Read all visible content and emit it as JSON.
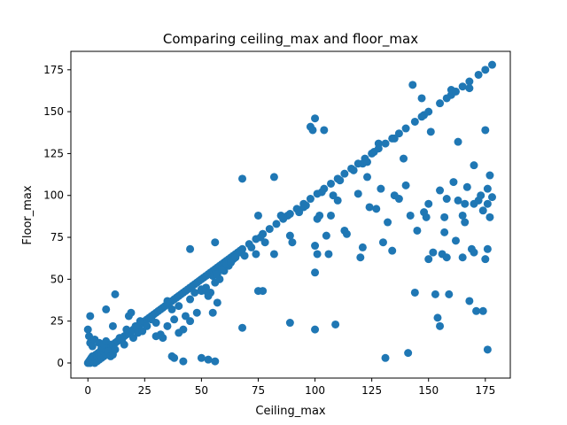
{
  "chart_data": {
    "type": "scatter",
    "title": "Comparing ceiling_max and floor_max",
    "xlabel": "Ceiling_max",
    "ylabel": "Floor_max",
    "xlim": [
      -7.5,
      186
    ],
    "ylim": [
      -9,
      186
    ],
    "xticks": [
      0,
      25,
      50,
      75,
      100,
      125,
      150,
      175
    ],
    "yticks": [
      0,
      25,
      50,
      75,
      100,
      125,
      150,
      175
    ],
    "grid": false,
    "marker_color": "#1f77b4",
    "points": [
      [
        0,
        0
      ],
      [
        0.5,
        1
      ],
      [
        1,
        0
      ],
      [
        1,
        2
      ],
      [
        1.5,
        3
      ],
      [
        2,
        1
      ],
      [
        2,
        4
      ],
      [
        2.5,
        2
      ],
      [
        3,
        0
      ],
      [
        3,
        3
      ],
      [
        3.5,
        5
      ],
      [
        4,
        1
      ],
      [
        4,
        4
      ],
      [
        4.5,
        6
      ],
      [
        5,
        2
      ],
      [
        5,
        5
      ],
      [
        5.5,
        7
      ],
      [
        6,
        3
      ],
      [
        6,
        6
      ],
      [
        6.5,
        8
      ],
      [
        7,
        4
      ],
      [
        7,
        7
      ],
      [
        7.5,
        9
      ],
      [
        8,
        5
      ],
      [
        8,
        8
      ],
      [
        8.5,
        10
      ],
      [
        9,
        6
      ],
      [
        9,
        9
      ],
      [
        10,
        10
      ],
      [
        10,
        11
      ],
      [
        11,
        11
      ],
      [
        12,
        12
      ],
      [
        13,
        13
      ],
      [
        14,
        14
      ],
      [
        15,
        15
      ],
      [
        16,
        16
      ],
      [
        17,
        17
      ],
      [
        18,
        18
      ],
      [
        19,
        19
      ],
      [
        20,
        20
      ],
      [
        21,
        21
      ],
      [
        22,
        22
      ],
      [
        23,
        23
      ],
      [
        24,
        24
      ],
      [
        25,
        25
      ],
      [
        26,
        26
      ],
      [
        27,
        27
      ],
      [
        28,
        28
      ],
      [
        29,
        29
      ],
      [
        30,
        30
      ],
      [
        31,
        31
      ],
      [
        32,
        32
      ],
      [
        33,
        33
      ],
      [
        34,
        34
      ],
      [
        35,
        35
      ],
      [
        36,
        36
      ],
      [
        37,
        37
      ],
      [
        38,
        38
      ],
      [
        39,
        39
      ],
      [
        40,
        40
      ],
      [
        41,
        41
      ],
      [
        42,
        42
      ],
      [
        43,
        43
      ],
      [
        44,
        44
      ],
      [
        45,
        45
      ],
      [
        46,
        46
      ],
      [
        47,
        47
      ],
      [
        48,
        48
      ],
      [
        49,
        49
      ],
      [
        50,
        50
      ],
      [
        51,
        51
      ],
      [
        52,
        52
      ],
      [
        53,
        53
      ],
      [
        54,
        54
      ],
      [
        55,
        55
      ],
      [
        56,
        56
      ],
      [
        57,
        57
      ],
      [
        58,
        58
      ],
      [
        59,
        59
      ],
      [
        60,
        60
      ],
      [
        61,
        61
      ],
      [
        62,
        62
      ],
      [
        63,
        63
      ],
      [
        64,
        64
      ],
      [
        65,
        65
      ],
      [
        66,
        66
      ],
      [
        67,
        67
      ],
      [
        68,
        68
      ],
      [
        0,
        20
      ],
      [
        0.5,
        16
      ],
      [
        1,
        28
      ],
      [
        1,
        12
      ],
      [
        2,
        10
      ],
      [
        3,
        14
      ],
      [
        5,
        12
      ],
      [
        6,
        9
      ],
      [
        7,
        11
      ],
      [
        8,
        13
      ],
      [
        9,
        7
      ],
      [
        10,
        4
      ],
      [
        11,
        5
      ],
      [
        12,
        8
      ],
      [
        12,
        41
      ],
      [
        15,
        14
      ],
      [
        16,
        11
      ],
      [
        17,
        20
      ],
      [
        18,
        28
      ],
      [
        19,
        30
      ],
      [
        20,
        15
      ],
      [
        21,
        22
      ],
      [
        22,
        18
      ],
      [
        23,
        25
      ],
      [
        24,
        19
      ],
      [
        26,
        22
      ],
      [
        28,
        26
      ],
      [
        30,
        24
      ],
      [
        32,
        17
      ],
      [
        35,
        22
      ],
      [
        38,
        26
      ],
      [
        40,
        18
      ],
      [
        42,
        20
      ],
      [
        45,
        25
      ],
      [
        48,
        30
      ],
      [
        50,
        43
      ],
      [
        52,
        45
      ],
      [
        54,
        42
      ],
      [
        56,
        48
      ],
      [
        58,
        50
      ],
      [
        60,
        55
      ],
      [
        62,
        58
      ],
      [
        64,
        62
      ],
      [
        8,
        32
      ],
      [
        11,
        22
      ],
      [
        14,
        15
      ],
      [
        30,
        16
      ],
      [
        33,
        15
      ],
      [
        37,
        4
      ],
      [
        38,
        3
      ],
      [
        42,
        1
      ],
      [
        45,
        68
      ],
      [
        50,
        3
      ],
      [
        53,
        2
      ],
      [
        56,
        1
      ],
      [
        55,
        30
      ],
      [
        56,
        72
      ],
      [
        57,
        36
      ],
      [
        68,
        21
      ],
      [
        68,
        110
      ],
      [
        74,
        65
      ],
      [
        75,
        88
      ],
      [
        75,
        43
      ],
      [
        77,
        43
      ],
      [
        76,
        75
      ],
      [
        77,
        77
      ],
      [
        78,
        72
      ],
      [
        82,
        111
      ],
      [
        82,
        65
      ],
      [
        88,
        88
      ],
      [
        89,
        76
      ],
      [
        89,
        24
      ],
      [
        90,
        72
      ],
      [
        95,
        93
      ],
      [
        96,
        94
      ],
      [
        98,
        141
      ],
      [
        99,
        139
      ],
      [
        100,
        146
      ],
      [
        100,
        54
      ],
      [
        100,
        20
      ],
      [
        100,
        70
      ],
      [
        101,
        65
      ],
      [
        101,
        86
      ],
      [
        102,
        88
      ],
      [
        104,
        139
      ],
      [
        105,
        76
      ],
      [
        106,
        65
      ],
      [
        107,
        88
      ],
      [
        108,
        100
      ],
      [
        109,
        23
      ],
      [
        110,
        97
      ],
      [
        113,
        79
      ],
      [
        114,
        77
      ],
      [
        119,
        101
      ],
      [
        120,
        63
      ],
      [
        121,
        69
      ],
      [
        121,
        119
      ],
      [
        123,
        111
      ],
      [
        124,
        93
      ],
      [
        126,
        126
      ],
      [
        127,
        92
      ],
      [
        128,
        131
      ],
      [
        129,
        104
      ],
      [
        130,
        72
      ],
      [
        131,
        3
      ],
      [
        132,
        84
      ],
      [
        134,
        67
      ],
      [
        135,
        100
      ],
      [
        137,
        98
      ],
      [
        139,
        122
      ],
      [
        140,
        106
      ],
      [
        141,
        6
      ],
      [
        142,
        88
      ],
      [
        143,
        166
      ],
      [
        144,
        42
      ],
      [
        145,
        79
      ],
      [
        147,
        158
      ],
      [
        148,
        148
      ],
      [
        148,
        90
      ],
      [
        149,
        87
      ],
      [
        150,
        95
      ],
      [
        150,
        62
      ],
      [
        151,
        138
      ],
      [
        152,
        66
      ],
      [
        153,
        41
      ],
      [
        154,
        27
      ],
      [
        155,
        22
      ],
      [
        155,
        103
      ],
      [
        156,
        65
      ],
      [
        157,
        87
      ],
      [
        157,
        78
      ],
      [
        158,
        98
      ],
      [
        158,
        63
      ],
      [
        159,
        41
      ],
      [
        160,
        160
      ],
      [
        160,
        163
      ],
      [
        161,
        108
      ],
      [
        162,
        73
      ],
      [
        163,
        132
      ],
      [
        163,
        97
      ],
      [
        165,
        63
      ],
      [
        165,
        88
      ],
      [
        166,
        84
      ],
      [
        166,
        95
      ],
      [
        167,
        105
      ],
      [
        168,
        37
      ],
      [
        168,
        164
      ],
      [
        169,
        68
      ],
      [
        170,
        118
      ],
      [
        170,
        95
      ],
      [
        170,
        66
      ],
      [
        171,
        31
      ],
      [
        172,
        97
      ],
      [
        173,
        100
      ],
      [
        174,
        31
      ],
      [
        174,
        91
      ],
      [
        175,
        139
      ],
      [
        175,
        62
      ],
      [
        176,
        95
      ],
      [
        176,
        8
      ],
      [
        176,
        68
      ],
      [
        176,
        104
      ],
      [
        177,
        112
      ],
      [
        177,
        87
      ],
      [
        178,
        99
      ],
      [
        178,
        178
      ],
      [
        175,
        175
      ],
      [
        172,
        172
      ],
      [
        168,
        168
      ],
      [
        165,
        165
      ],
      [
        162,
        162
      ],
      [
        158,
        158
      ],
      [
        155,
        155
      ],
      [
        150,
        150
      ],
      [
        147,
        147
      ],
      [
        144,
        144
      ],
      [
        140,
        140
      ],
      [
        137,
        137
      ],
      [
        134,
        134
      ],
      [
        131,
        131
      ],
      [
        128,
        128
      ],
      [
        125,
        125
      ],
      [
        122,
        122
      ],
      [
        119,
        119
      ],
      [
        116,
        116
      ],
      [
        113,
        113
      ],
      [
        110,
        110
      ],
      [
        107,
        107
      ],
      [
        104,
        104
      ],
      [
        101,
        101
      ],
      [
        98,
        98
      ],
      [
        95,
        95
      ],
      [
        92,
        92
      ],
      [
        89,
        89
      ],
      [
        86,
        86
      ],
      [
        83,
        83
      ],
      [
        80,
        80
      ],
      [
        77,
        77
      ],
      [
        74,
        74
      ],
      [
        71,
        71
      ],
      [
        35,
        37
      ],
      [
        37,
        32
      ],
      [
        40,
        34
      ],
      [
        43,
        28
      ],
      [
        45,
        38
      ],
      [
        47,
        42
      ],
      [
        50,
        44
      ],
      [
        52,
        43
      ],
      [
        53,
        40
      ],
      [
        55,
        52
      ],
      [
        57,
        53
      ],
      [
        59,
        56
      ],
      [
        61,
        59
      ],
      [
        63,
        60
      ],
      [
        65,
        63
      ],
      [
        67,
        66
      ],
      [
        69,
        64
      ],
      [
        72,
        69
      ],
      [
        85,
        88
      ],
      [
        93,
        90
      ],
      [
        103,
        102
      ],
      [
        111,
        109
      ],
      [
        117,
        115
      ],
      [
        123,
        120
      ],
      [
        135,
        134
      ]
    ]
  }
}
